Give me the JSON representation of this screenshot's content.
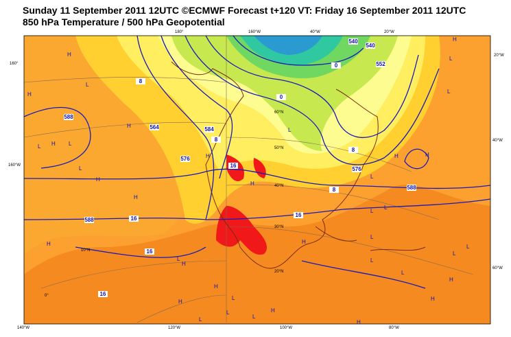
{
  "header": {
    "title": "Sunday 11 September 2011 12UTC ©ECMWF Forecast t+120 VT: Friday 16 September 2011 12UTC",
    "subtitle": "850 hPa Temperature / 500 hPa Geopotential"
  },
  "map": {
    "graticule_labels": [
      "160°",
      "160°W",
      "140°W",
      "120°W",
      "100°W",
      "80°W",
      "20°W",
      "40°W",
      "60°W",
      "180°",
      "160°W",
      "40°W",
      "20°W",
      "60°N",
      "50°N",
      "40°N",
      "30°N",
      "20°N",
      "10°N",
      "0°"
    ],
    "contour_labels": [
      "16",
      "16",
      "16",
      "16",
      "16",
      "8",
      "8",
      "8",
      "8",
      "0",
      "0",
      "588",
      "588",
      "588",
      "584",
      "576",
      "576",
      "564",
      "552",
      "540",
      "540"
    ],
    "pressure_centers": [
      "H",
      "L",
      "H",
      "H",
      "L",
      "L",
      "H",
      "L",
      "H",
      "H",
      "L",
      "L",
      "H",
      "L",
      "H",
      "L",
      "L",
      "H",
      "L",
      "H",
      "L",
      "H",
      "L",
      "H",
      "L",
      "H",
      "L",
      "H",
      "H",
      "L",
      "H",
      "L",
      "L",
      "H",
      "L",
      "H",
      "H",
      "L",
      "H",
      "L"
    ]
  }
}
